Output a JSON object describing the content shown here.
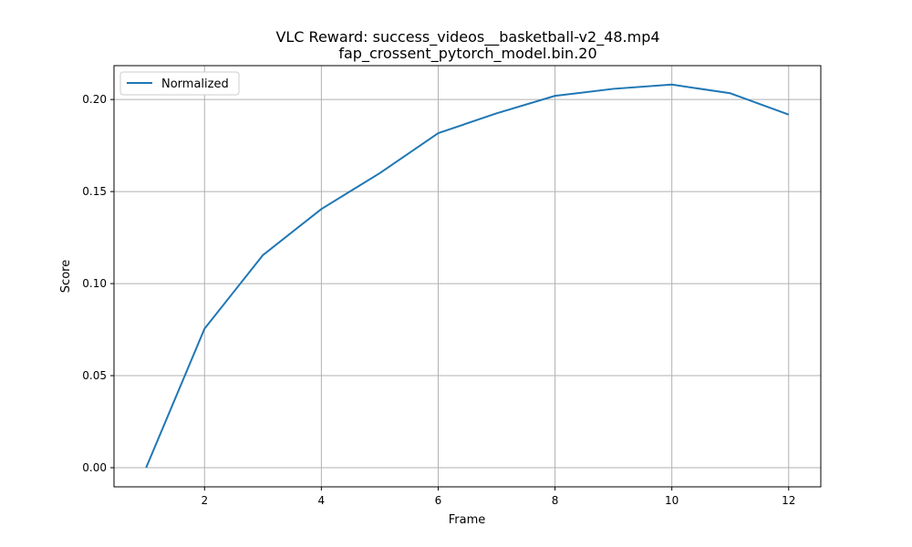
{
  "chart_data": {
    "type": "line",
    "title": "VLC Reward: success_videos__basketball-v2_48.mp4",
    "subtitle": "fap_crossent_pytorch_model.bin.20",
    "xlabel": "Frame",
    "ylabel": "Score",
    "xlim": [
      0.45,
      12.55
    ],
    "ylim": [
      -0.0104,
      0.2184
    ],
    "xticks": [
      2,
      4,
      6,
      8,
      10,
      12
    ],
    "yticks": [
      0.0,
      0.05,
      0.1,
      0.15,
      0.2
    ],
    "ytick_labels": [
      "0.00",
      "0.05",
      "0.10",
      "0.15",
      "0.20"
    ],
    "grid": true,
    "legend_position": "top-left",
    "series": [
      {
        "name": "Normalized",
        "color": "#1f77b4",
        "x": [
          1,
          2,
          3,
          4,
          5,
          6,
          7,
          8,
          9,
          10,
          11,
          12
        ],
        "y": [
          0.0,
          0.0755,
          0.1155,
          0.1405,
          0.16,
          0.1817,
          0.1925,
          0.202,
          0.2058,
          0.2081,
          0.2034,
          0.1918
        ]
      }
    ]
  }
}
